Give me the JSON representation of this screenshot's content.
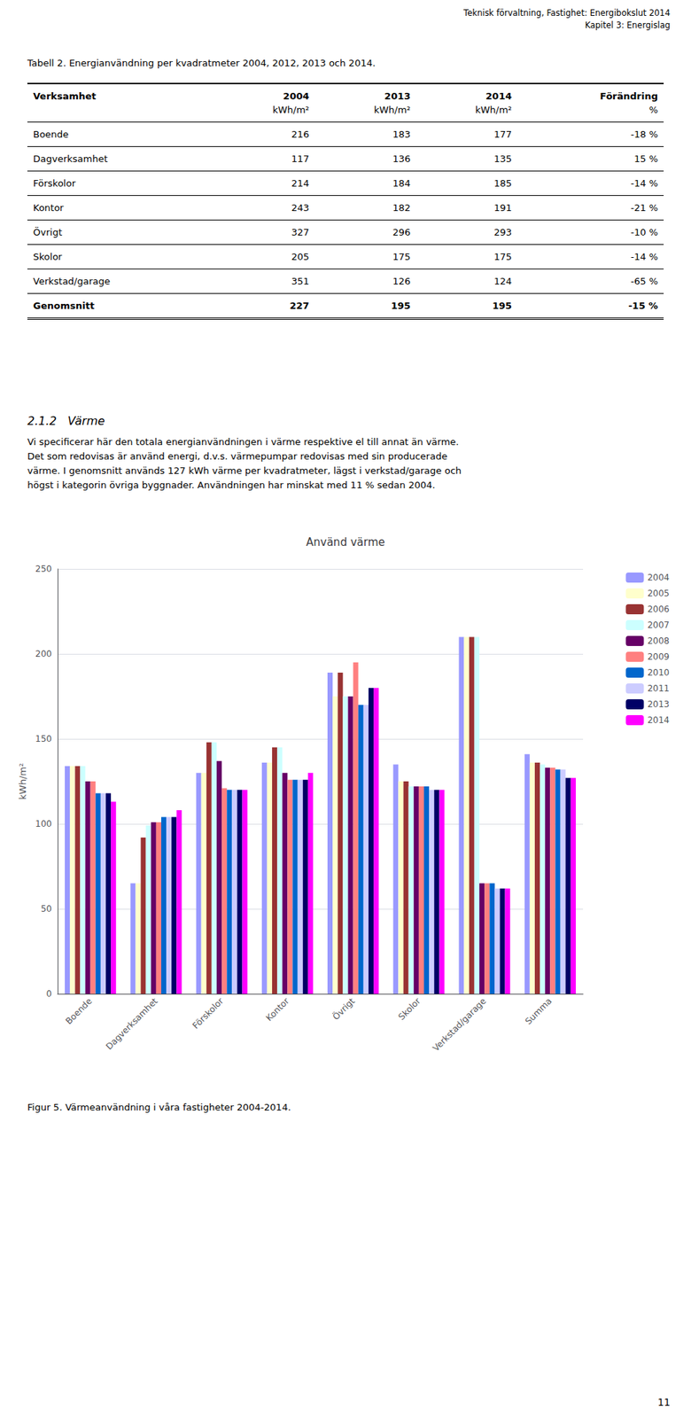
{
  "header": [
    "Teknisk förvaltning, Fastighet: Energibokslut 2014",
    "Kapitel 3: Energislag"
  ],
  "chart_data": [
    {
      "type": "table",
      "title": "Tabell 2. Energianvändning per kvadratmeter 2004, 2012, 2013 och 2014.",
      "columns": [
        "Verksamhet",
        "2004",
        "2013",
        "2014",
        "Förändring"
      ],
      "units": [
        "kWh/m²",
        "kWh/m²",
        "kWh/m²",
        "%"
      ],
      "rows": [
        [
          "Boende",
          "216",
          "183",
          "177",
          "-18 %"
        ],
        [
          "Dagverksamhet",
          "117",
          "136",
          "135",
          "15 %"
        ],
        [
          "Förskolor",
          "214",
          "184",
          "185",
          "-14 %"
        ],
        [
          "Kontor",
          "243",
          "182",
          "191",
          "-21 %"
        ],
        [
          "Övrigt",
          "327",
          "296",
          "293",
          "-10 %"
        ],
        [
          "Skolor",
          "205",
          "175",
          "175",
          "-14 %"
        ],
        [
          "Verkstad/garage",
          "351",
          "126",
          "124",
          "-65 %"
        ],
        [
          "Genomsnitt",
          "227",
          "195",
          "195",
          "-15 %"
        ]
      ]
    },
    {
      "type": "bar",
      "title": "Använd värme",
      "ylabel": "kWh/m²",
      "categories": [
        "Boende",
        "Dagverksamhet",
        "Förskolor",
        "Kontor",
        "Övrigt",
        "Skolor",
        "Verkstad/garage",
        "Summa"
      ],
      "series": [
        {
          "name": "2004",
          "color": "#9999FF",
          "values": [
            134,
            65,
            130,
            136,
            189,
            135,
            210,
            141
          ]
        },
        {
          "name": "2005",
          "color": "#FFFFCC",
          "values": [
            134,
            65,
            130,
            136,
            175,
            125,
            210,
            136
          ]
        },
        {
          "name": "2006",
          "color": "#993333",
          "values": [
            134,
            92,
            148,
            145,
            189,
            125,
            210,
            136
          ]
        },
        {
          "name": "2007",
          "color": "#CCFFFF",
          "values": [
            134,
            99,
            148,
            145,
            175,
            122,
            210,
            135
          ]
        },
        {
          "name": "2008",
          "color": "#660066",
          "values": [
            125,
            101,
            137,
            130,
            175,
            122,
            65,
            133
          ]
        },
        {
          "name": "2009",
          "color": "#FF8080",
          "values": [
            125,
            101,
            121,
            126,
            195,
            122,
            65,
            133
          ]
        },
        {
          "name": "2010",
          "color": "#0066CC",
          "values": [
            118,
            104,
            120,
            126,
            170,
            122,
            65,
            132
          ]
        },
        {
          "name": "2011",
          "color": "#CCCCFF",
          "values": [
            118,
            104,
            120,
            126,
            170,
            120,
            62,
            132
          ]
        },
        {
          "name": "2013",
          "color": "#000066",
          "values": [
            118,
            104,
            120,
            126,
            180,
            120,
            62,
            127
          ]
        },
        {
          "name": "2014",
          "color": "#FF00FF",
          "values": [
            113,
            108,
            120,
            130,
            180,
            120,
            62,
            127
          ]
        }
      ],
      "ylim": [
        0,
        250
      ],
      "yticks": [
        0,
        50,
        100,
        150,
        200,
        250
      ],
      "grid": true,
      "legend": "right",
      "annotations": [
        "Figur 5. Värmeanvändning i våra fastigheter 2004-2014."
      ]
    }
  ],
  "section_title": "2.1.2   Värme",
  "section_lines": [
    "Vi specificerar här den totala energianvändningen i värme respektive el till annat än värme.",
    "Det som redovisas är använd energi, d.v.s. värmepumpar redovisas med sin producerade",
    "värme. I genomsnitt används 127 kWh värme per kvadratmeter, lägst i verkstad/garage och",
    "högst i kategorin övriga byggnader. Användningen har minskat med 11 % sedan 2004."
  ],
  "page_number": "11"
}
